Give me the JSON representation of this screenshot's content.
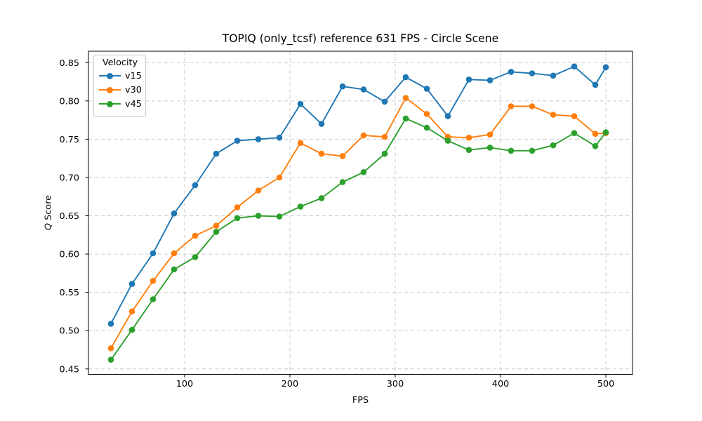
{
  "chart_data": {
    "type": "line",
    "title": "TOPIQ (only_tcsf) reference 631 FPS - Circle Scene",
    "xlabel": "FPS",
    "ylabel": "Q Score",
    "ylabel_q": "Q",
    "ylabel_rest": " Score",
    "legend_title": "Velocity",
    "legend_position": "upper-left",
    "grid": true,
    "grid_style": "dashed",
    "grid_color": "#cbcbcb",
    "xlim": [
      8.7,
      525.3
    ],
    "ylim": [
      0.4429,
      0.8649
    ],
    "xticks": [
      100,
      200,
      300,
      400,
      500
    ],
    "xtick_labels": [
      "100",
      "200",
      "300",
      "400",
      "500"
    ],
    "yticks": [
      0.45,
      0.5,
      0.55,
      0.6,
      0.65,
      0.7,
      0.75,
      0.8,
      0.85
    ],
    "ytick_labels": [
      "0.45",
      "0.50",
      "0.55",
      "0.60",
      "0.65",
      "0.70",
      "0.75",
      "0.80",
      "0.85"
    ],
    "x": [
      30,
      50,
      70,
      90,
      110,
      130,
      150,
      170,
      190,
      210,
      230,
      250,
      270,
      290,
      310,
      330,
      350,
      370,
      390,
      410,
      430,
      450,
      470,
      490,
      500
    ],
    "series": [
      {
        "name": "v15",
        "color": "#1f77b4",
        "values": [
          0.509,
          0.561,
          0.601,
          0.653,
          0.69,
          0.731,
          0.748,
          0.75,
          0.752,
          0.796,
          0.77,
          0.819,
          0.815,
          0.799,
          0.831,
          0.816,
          0.78,
          0.828,
          0.827,
          0.838,
          0.836,
          0.833,
          0.845,
          0.821,
          0.844
        ]
      },
      {
        "name": "v30",
        "color": "#ff7f0e",
        "values": [
          0.477,
          0.525,
          0.565,
          0.601,
          0.624,
          0.637,
          0.661,
          0.683,
          0.7,
          0.745,
          0.731,
          0.728,
          0.755,
          0.753,
          0.804,
          0.783,
          0.753,
          0.752,
          0.756,
          0.793,
          0.793,
          0.782,
          0.78,
          0.757,
          0.758
        ]
      },
      {
        "name": "v45",
        "color": "#2ca02c",
        "values": [
          0.462,
          0.501,
          0.541,
          0.58,
          0.596,
          0.629,
          0.647,
          0.65,
          0.649,
          0.662,
          0.673,
          0.694,
          0.707,
          0.731,
          0.777,
          0.765,
          0.748,
          0.736,
          0.739,
          0.735,
          0.735,
          0.742,
          0.758,
          0.741,
          0.759
        ]
      }
    ]
  }
}
